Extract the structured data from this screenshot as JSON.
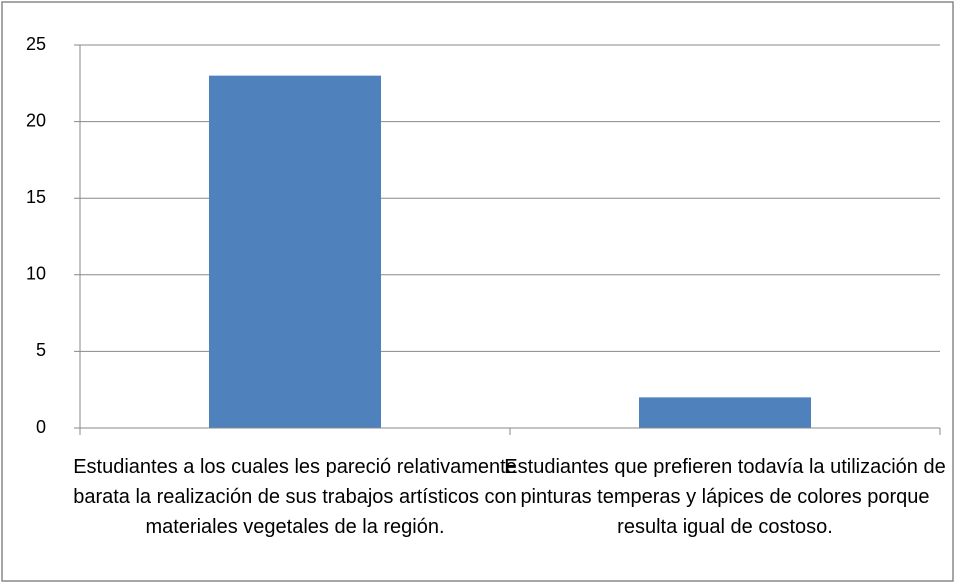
{
  "chart_data": {
    "type": "bar",
    "categories": [
      "Estudiantes a los cuales les pareció relativamente barata la realización de sus trabajos artísticos con materiales vegetales de la región.",
      "Estudiantes que prefieren todavía la utilización de pinturas temperas y lápices de colores porque resulta igual de costoso."
    ],
    "values": [
      23,
      2
    ],
    "color": "#4f81bd",
    "ylim": [
      0,
      25
    ],
    "yticks": [
      0,
      5,
      10,
      15,
      20,
      25
    ],
    "grid": true
  }
}
